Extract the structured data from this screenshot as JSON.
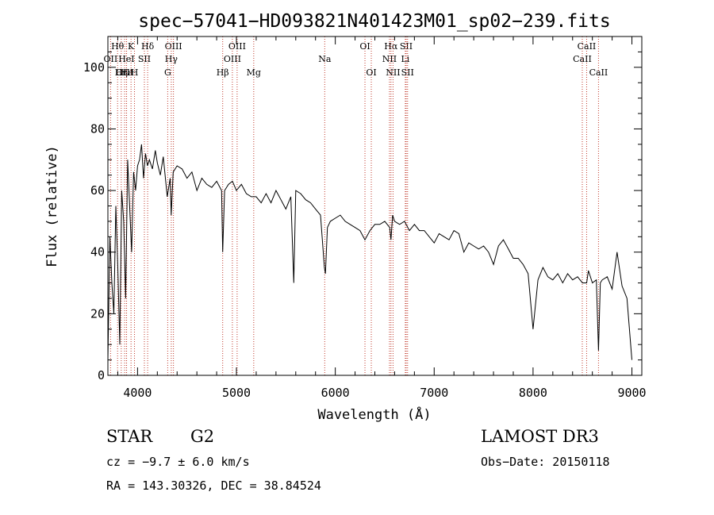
{
  "chart_data": {
    "type": "line",
    "title": "spec−57041−HD093821N401423M01_sp02−239.fits",
    "xlabel": "Wavelength (Å)",
    "ylabel": "Flux (relative)",
    "xlim": [
      3700,
      9100
    ],
    "ylim": [
      0,
      110
    ],
    "xticks": [
      4000,
      5000,
      6000,
      7000,
      8000,
      9000
    ],
    "yticks": [
      0,
      20,
      40,
      60,
      80,
      100
    ],
    "series": [
      {
        "name": "spectrum",
        "x": [
          3700,
          3720,
          3740,
          3760,
          3780,
          3800,
          3820,
          3840,
          3860,
          3880,
          3900,
          3920,
          3940,
          3960,
          3980,
          4000,
          4020,
          4040,
          4060,
          4080,
          4100,
          4120,
          4150,
          4180,
          4200,
          4230,
          4260,
          4300,
          4330,
          4340,
          4360,
          4400,
          4450,
          4500,
          4550,
          4600,
          4650,
          4700,
          4750,
          4800,
          4850,
          4861,
          4880,
          4920,
          4960,
          5000,
          5050,
          5100,
          5150,
          5200,
          5250,
          5300,
          5350,
          5400,
          5450,
          5500,
          5550,
          5580,
          5600,
          5650,
          5700,
          5750,
          5800,
          5850,
          5890,
          5900,
          5920,
          5950,
          6000,
          6050,
          6100,
          6150,
          6200,
          6250,
          6300,
          6350,
          6400,
          6450,
          6500,
          6550,
          6563,
          6580,
          6600,
          6650,
          6700,
          6750,
          6800,
          6850,
          6900,
          6950,
          7000,
          7050,
          7100,
          7150,
          7200,
          7250,
          7300,
          7350,
          7400,
          7450,
          7500,
          7550,
          7600,
          7650,
          7700,
          7750,
          7800,
          7850,
          7900,
          7950,
          8000,
          8050,
          8100,
          8150,
          8200,
          8250,
          8300,
          8350,
          8400,
          8450,
          8500,
          8542,
          8560,
          8600,
          8640,
          8662,
          8680,
          8700,
          8750,
          8800,
          8850,
          8900,
          8950,
          9000
        ],
        "y": [
          5,
          45,
          30,
          20,
          55,
          35,
          10,
          60,
          50,
          25,
          70,
          55,
          40,
          66,
          60,
          68,
          70,
          75,
          64,
          72,
          68,
          70,
          67,
          73,
          69,
          65,
          71,
          58,
          64,
          52,
          66,
          68,
          67,
          64,
          66,
          60,
          64,
          62,
          61,
          63,
          60,
          40,
          60,
          62,
          63,
          60,
          62,
          59,
          58,
          58,
          56,
          59,
          56,
          60,
          57,
          54,
          58,
          30,
          60,
          59,
          57,
          56,
          54,
          52,
          35,
          33,
          48,
          50,
          51,
          52,
          50,
          49,
          48,
          47,
          44,
          47,
          49,
          49,
          50,
          48,
          44,
          52,
          50,
          49,
          50,
          47,
          49,
          47,
          47,
          45,
          43,
          46,
          45,
          44,
          47,
          46,
          40,
          43,
          42,
          41,
          42,
          40,
          36,
          42,
          44,
          41,
          38,
          38,
          36,
          33,
          15,
          31,
          35,
          32,
          31,
          33,
          30,
          33,
          31,
          32,
          30,
          30,
          34,
          30,
          31,
          8,
          30,
          31,
          32,
          28,
          40,
          29,
          25,
          5
        ]
      }
    ],
    "line_markers": [
      {
        "label": "Hθ",
        "x": 3798,
        "row": 1
      },
      {
        "label": "OII",
        "x": 3727,
        "row": 2
      },
      {
        "label": "OIII",
        "x": 3869,
        "row": 3
      },
      {
        "label": "Hε",
        "x": 3889,
        "row": 3
      },
      {
        "label": "Hη",
        "x": 3835,
        "row": 3
      },
      {
        "label": "K",
        "x": 3934,
        "row": 1
      },
      {
        "label": "HeI",
        "x": 3888,
        "row": 2
      },
      {
        "label": "SII",
        "x": 4069,
        "row": 2
      },
      {
        "label": "H",
        "x": 3969,
        "row": 3
      },
      {
        "label": "Hδ",
        "x": 4102,
        "row": 1
      },
      {
        "label": "OIII",
        "x": 4363,
        "row": 1
      },
      {
        "label": "Hγ",
        "x": 4341,
        "row": 2
      },
      {
        "label": "G",
        "x": 4305,
        "row": 3
      },
      {
        "label": "Hβ",
        "x": 4861,
        "row": 3
      },
      {
        "label": "OIII",
        "x": 5007,
        "row": 1
      },
      {
        "label": "OIII",
        "x": 4959,
        "row": 2
      },
      {
        "label": "Mg",
        "x": 5175,
        "row": 3
      },
      {
        "label": "Na",
        "x": 5893,
        "row": 2
      },
      {
        "label": "OI",
        "x": 6300,
        "row": 1
      },
      {
        "label": "OI",
        "x": 6364,
        "row": 3
      },
      {
        "label": "Hα",
        "x": 6563,
        "row": 1
      },
      {
        "label": "NII",
        "x": 6548,
        "row": 2
      },
      {
        "label": "NII",
        "x": 6584,
        "row": 3
      },
      {
        "label": "SII",
        "x": 6717,
        "row": 1
      },
      {
        "label": "Li",
        "x": 6708,
        "row": 2
      },
      {
        "label": "SII",
        "x": 6731,
        "row": 3
      },
      {
        "label": "CaII",
        "x": 8542,
        "row": 1
      },
      {
        "label": "CaII",
        "x": 8498,
        "row": 2
      },
      {
        "label": "CaII",
        "x": 8662,
        "row": 3
      }
    ]
  },
  "info": {
    "object_class": "STAR",
    "subclass": "G2",
    "survey": "LAMOST DR3",
    "redshift": "cz = −9.7 ± 6.0 km/s",
    "obs_date": "Obs−Date: 20150118",
    "coords": "RA = 143.30326, DEC =  38.84524"
  }
}
